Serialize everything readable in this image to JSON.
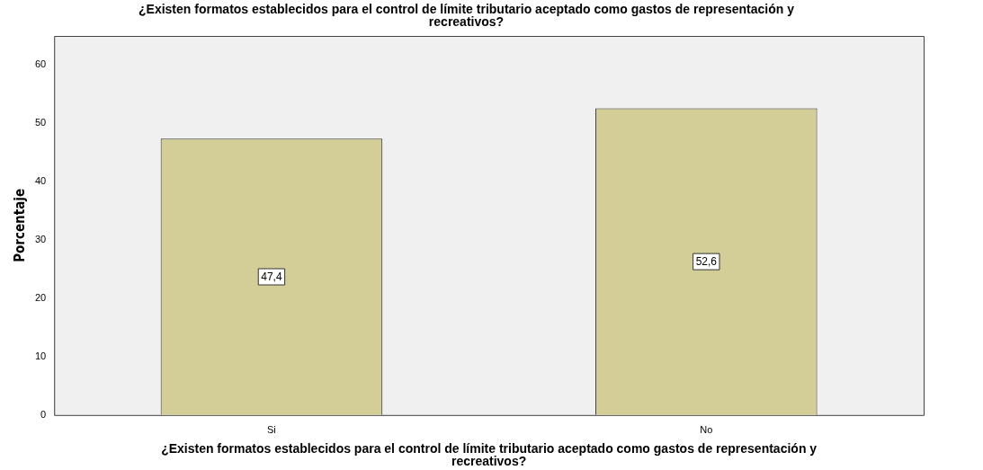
{
  "chart_data": {
    "type": "bar",
    "title": "¿Existen formatos establecidos para el control de límite tributario aceptado como gastos de representación y recreativos?",
    "xlabel": "¿Existen formatos establecidos para el control de límite tributario aceptado como gastos de representación y recreativos?",
    "ylabel": "Porcentaje",
    "categories": [
      "Si",
      "No"
    ],
    "values": [
      47.4,
      52.6
    ],
    "value_labels": [
      "47,4",
      "52,6"
    ],
    "color": "#d3ce97",
    "ylim": [
      0,
      65
    ],
    "yticks": [
      0,
      10,
      20,
      30,
      40,
      50,
      60
    ],
    "grid": false,
    "legend": false
  }
}
